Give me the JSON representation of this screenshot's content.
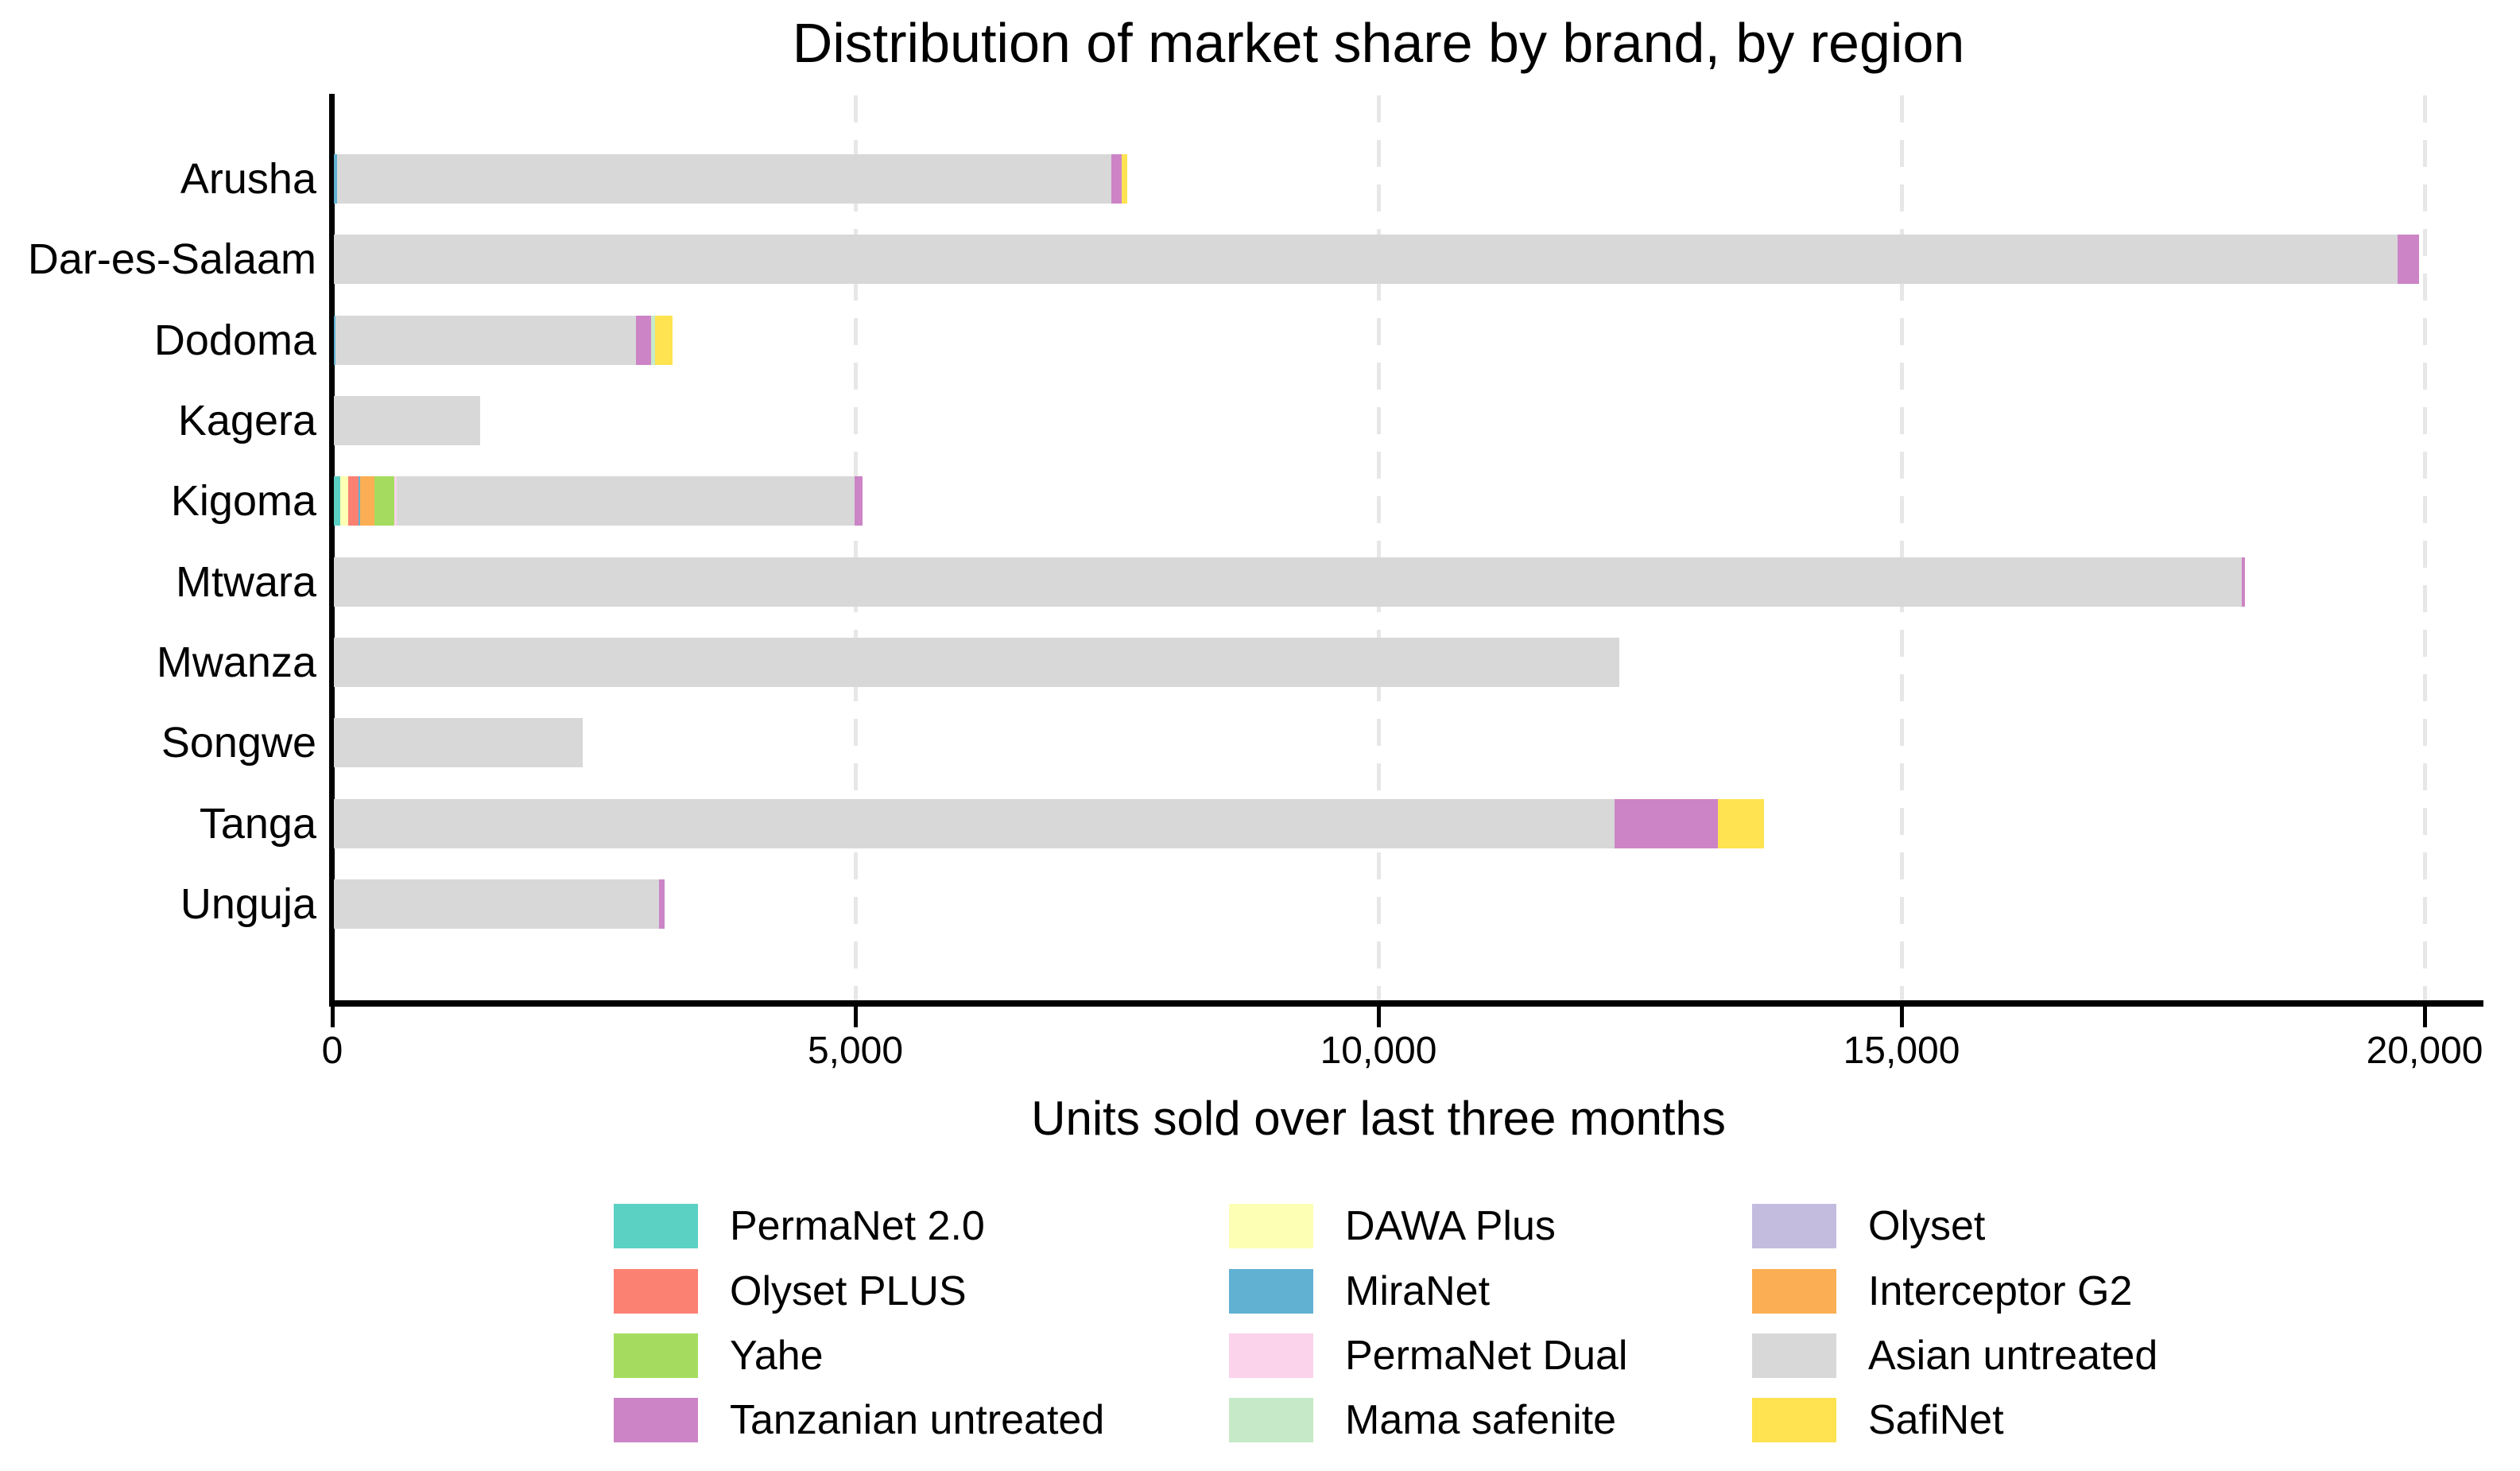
{
  "chart_data": {
    "type": "bar",
    "orientation": "horizontal",
    "stacked": true,
    "title": "Distribution of market share by brand, by region",
    "xlabel": "Units sold over last three months",
    "ylabel": "",
    "categories": [
      "Arusha",
      "Dar-es-Salaam",
      "Dodoma",
      "Kagera",
      "Kigoma",
      "Mtwara",
      "Mwanza",
      "Songwe",
      "Tanga",
      "Unguja"
    ],
    "xlim": [
      0,
      20500
    ],
    "grid": "vertical-dashed",
    "x_axis": {
      "ticks": [
        {
          "value": 0,
          "label": "0"
        },
        {
          "value": 5000,
          "label": "5,000"
        },
        {
          "value": 10000,
          "label": "10,000"
        },
        {
          "value": 15000,
          "label": "15,000"
        },
        {
          "value": 20000,
          "label": "20,000"
        }
      ]
    },
    "series": [
      {
        "name": "PermaNet 2.0",
        "color": "#5bd1c4",
        "values": [
          0,
          0,
          0,
          0,
          60,
          0,
          0,
          0,
          0,
          0
        ]
      },
      {
        "name": "DAWA Plus",
        "color": "#fdffb4",
        "values": [
          0,
          0,
          0,
          0,
          75,
          0,
          0,
          0,
          0,
          0
        ]
      },
      {
        "name": "Olyset PLUS",
        "color": "#fb8173",
        "values": [
          0,
          0,
          0,
          0,
          100,
          0,
          0,
          0,
          0,
          0
        ]
      },
      {
        "name": "MiraNet",
        "color": "#60b1d2",
        "values": [
          30,
          0,
          15,
          0,
          15,
          0,
          0,
          0,
          0,
          0
        ]
      },
      {
        "name": "Interceptor G2",
        "color": "#fbae53",
        "values": [
          0,
          0,
          0,
          0,
          135,
          0,
          0,
          0,
          0,
          0
        ]
      },
      {
        "name": "Yahe",
        "color": "#a5dc5f",
        "values": [
          0,
          0,
          0,
          0,
          190,
          0,
          0,
          0,
          0,
          0
        ]
      },
      {
        "name": "PermaNet Dual",
        "color": "#fbd3ea",
        "values": [
          0,
          0,
          0,
          0,
          25,
          0,
          0,
          0,
          0,
          0
        ]
      },
      {
        "name": "Olyset",
        "color": "#c3bcdf",
        "values": [
          0,
          0,
          0,
          0,
          0,
          0,
          0,
          0,
          0,
          0
        ]
      },
      {
        "name": "Asian untreated",
        "color": "#d8d8d8",
        "values": [
          7400,
          19730,
          2870,
          1400,
          4380,
          18240,
          12290,
          2380,
          12240,
          3105
        ]
      },
      {
        "name": "Tanzanian untreated",
        "color": "#cc84c6",
        "values": [
          100,
          200,
          150,
          0,
          75,
          30,
          0,
          0,
          990,
          55
        ]
      },
      {
        "name": "Mama safenite",
        "color": "#c6e9c7",
        "values": [
          0,
          0,
          35,
          0,
          0,
          0,
          0,
          0,
          0,
          0
        ]
      },
      {
        "name": "SafiNet",
        "color": "#ffe350",
        "values": [
          55,
          0,
          170,
          0,
          0,
          0,
          0,
          0,
          440,
          0
        ]
      }
    ],
    "bar_totals": [
      7585,
      19930,
      3240,
      1400,
      5055,
      18270,
      12290,
      2380,
      13670,
      3160
    ],
    "legend": {
      "position": "bottom",
      "columns": [
        [
          "PermaNet 2.0",
          "Olyset PLUS",
          "Yahe",
          "Tanzanian untreated"
        ],
        [
          "DAWA Plus",
          "MiraNet",
          "PermaNet Dual",
          "Mama safenite"
        ],
        [
          "Olyset",
          "Interceptor G2",
          "Asian untreated",
          "SafiNet"
        ]
      ]
    },
    "colors": {
      "axis": "#000000",
      "gridline": "#e7e7e7",
      "background": "#ffffff"
    }
  }
}
